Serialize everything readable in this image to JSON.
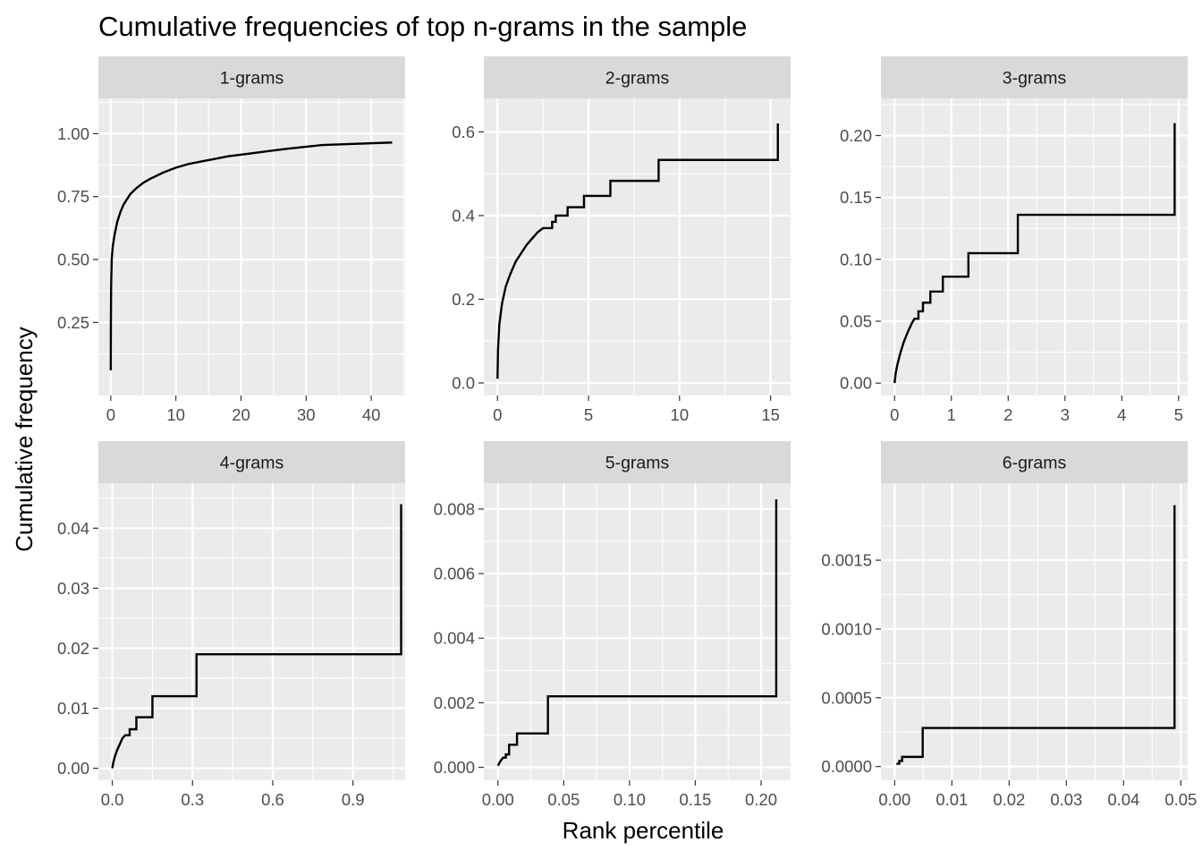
{
  "chart_data": {
    "type": "line",
    "title": "Cumulative frequencies of top n-grams in the sample",
    "xlabel": "Rank percentile",
    "ylabel": "Cumulative frequency",
    "grid": true,
    "panels": [
      {
        "label": "1-grams",
        "xlim": [
          -1.9,
          45.2
        ],
        "ylim": [
          -0.04,
          1.14
        ],
        "x_ticks": [
          0,
          10,
          20,
          30,
          40
        ],
        "x_tick_labels": [
          "0",
          "10",
          "20",
          "30",
          "40"
        ],
        "y_ticks": [
          0.25,
          0.5,
          0.75,
          1.0
        ],
        "y_tick_labels": [
          "0.25",
          "0.50",
          "0.75",
          "1.00"
        ],
        "curve": "smooth",
        "points": [
          [
            0,
            0.06
          ],
          [
            0.02,
            0.25
          ],
          [
            0.06,
            0.4
          ],
          [
            0.15,
            0.5
          ],
          [
            0.3,
            0.55
          ],
          [
            0.6,
            0.6
          ],
          [
            1,
            0.65
          ],
          [
            1.5,
            0.69
          ],
          [
            2,
            0.72
          ],
          [
            3,
            0.76
          ],
          [
            4,
            0.785
          ],
          [
            5,
            0.805
          ],
          [
            6,
            0.82
          ],
          [
            8,
            0.845
          ],
          [
            10,
            0.865
          ],
          [
            12,
            0.88
          ],
          [
            14,
            0.89
          ],
          [
            16,
            0.9
          ],
          [
            18,
            0.91
          ],
          [
            21,
            0.92
          ],
          [
            24,
            0.93
          ],
          [
            27,
            0.94
          ],
          [
            32.5,
            0.955
          ],
          [
            43.2,
            0.965
          ]
        ]
      },
      {
        "label": "2-grams",
        "xlim": [
          -0.75,
          16.1
        ],
        "ylim": [
          -0.03,
          0.68
        ],
        "x_ticks": [
          0,
          5,
          10,
          15
        ],
        "x_tick_labels": [
          "0",
          "5",
          "10",
          "15"
        ],
        "y_ticks": [
          0.0,
          0.2,
          0.4,
          0.6
        ],
        "y_tick_labels": [
          "0.0",
          "0.2",
          "0.4",
          "0.6"
        ],
        "curve": "smooth-then-steps",
        "points": [
          [
            0,
            0.01
          ],
          [
            0.03,
            0.08
          ],
          [
            0.1,
            0.14
          ],
          [
            0.25,
            0.19
          ],
          [
            0.45,
            0.23
          ],
          [
            0.7,
            0.26
          ],
          [
            1.0,
            0.29
          ],
          [
            1.3,
            0.31
          ],
          [
            1.6,
            0.33
          ],
          [
            2.0,
            0.35
          ],
          [
            2.2,
            0.36
          ],
          [
            2.5,
            0.37
          ]
        ],
        "steps": [
          [
            2.5,
            0.37
          ],
          [
            3.0,
            0.385
          ],
          [
            3.2,
            0.4
          ],
          [
            3.85,
            0.42
          ],
          [
            4.75,
            0.447
          ],
          [
            6.2,
            0.483
          ],
          [
            8.85,
            0.533
          ],
          [
            15.4,
            0.62
          ]
        ]
      },
      {
        "label": "3-grams",
        "xlim": [
          -0.24,
          5.16
        ],
        "ylim": [
          -0.01,
          0.23
        ],
        "x_ticks": [
          0,
          1,
          2,
          3,
          4,
          5
        ],
        "x_tick_labels": [
          "0",
          "1",
          "2",
          "3",
          "4",
          "5"
        ],
        "y_ticks": [
          0.0,
          0.05,
          0.1,
          0.15,
          0.2
        ],
        "y_tick_labels": [
          "0.00",
          "0.05",
          "0.10",
          "0.15",
          "0.20"
        ],
        "curve": "smooth-then-steps",
        "points": [
          [
            0,
            0.0
          ],
          [
            0.02,
            0.008
          ],
          [
            0.05,
            0.015
          ],
          [
            0.1,
            0.024
          ],
          [
            0.16,
            0.033
          ],
          [
            0.23,
            0.041
          ],
          [
            0.3,
            0.048
          ],
          [
            0.35,
            0.052
          ]
        ],
        "steps": [
          [
            0.35,
            0.052
          ],
          [
            0.42,
            0.058
          ],
          [
            0.5,
            0.065
          ],
          [
            0.63,
            0.074
          ],
          [
            0.85,
            0.086
          ],
          [
            1.3,
            0.105
          ],
          [
            2.17,
            0.136
          ],
          [
            4.93,
            0.21
          ]
        ]
      },
      {
        "label": "4-grams",
        "xlim": [
          -0.052,
          1.095
        ],
        "ylim": [
          -0.002,
          0.0475
        ],
        "x_ticks": [
          0.0,
          0.3,
          0.6,
          0.9
        ],
        "x_tick_labels": [
          "0.0",
          "0.3",
          "0.6",
          "0.9"
        ],
        "y_ticks": [
          0.0,
          0.01,
          0.02,
          0.03,
          0.04
        ],
        "y_tick_labels": [
          "0.00",
          "0.01",
          "0.02",
          "0.03",
          "0.04"
        ],
        "curve": "smooth-then-steps",
        "points": [
          [
            0,
            0.0
          ],
          [
            0.004,
            0.001
          ],
          [
            0.01,
            0.002
          ],
          [
            0.018,
            0.003
          ],
          [
            0.028,
            0.004
          ],
          [
            0.038,
            0.005
          ],
          [
            0.048,
            0.0055
          ]
        ],
        "steps": [
          [
            0.048,
            0.0055
          ],
          [
            0.065,
            0.0065
          ],
          [
            0.09,
            0.0085
          ],
          [
            0.15,
            0.012
          ],
          [
            0.315,
            0.019
          ],
          [
            1.08,
            0.044
          ]
        ]
      },
      {
        "label": "5-grams",
        "xlim": [
          -0.0107,
          0.2224
        ],
        "ylim": [
          -0.0004,
          0.0088
        ],
        "x_ticks": [
          0.0,
          0.05,
          0.1,
          0.15,
          0.2
        ],
        "x_tick_labels": [
          "0.00",
          "0.05",
          "0.10",
          "0.15",
          "0.20"
        ],
        "y_ticks": [
          0.0,
          0.002,
          0.004,
          0.006,
          0.008
        ],
        "y_tick_labels": [
          "0.000",
          "0.002",
          "0.004",
          "0.006",
          "0.008"
        ],
        "curve": "smooth-then-steps",
        "points": [
          [
            0,
            5e-05
          ],
          [
            0.002,
            0.0002
          ],
          [
            0.004,
            0.0003
          ]
        ],
        "steps": [
          [
            0.004,
            0.0003
          ],
          [
            0.006,
            0.0004
          ],
          [
            0.0085,
            0.0007
          ],
          [
            0.0145,
            0.00105
          ],
          [
            0.038,
            0.0022
          ],
          [
            0.2115,
            0.0083
          ]
        ]
      },
      {
        "label": "6-grams",
        "xlim": [
          -0.0024,
          0.0512
        ],
        "ylim": [
          -0.0001,
          0.00206
        ],
        "x_ticks": [
          0.0,
          0.01,
          0.02,
          0.03,
          0.04,
          0.05
        ],
        "x_tick_labels": [
          "0.00",
          "0.01",
          "0.02",
          "0.03",
          "0.04",
          "0.05"
        ],
        "y_ticks": [
          0.0,
          0.0005,
          0.001,
          0.0015
        ],
        "y_tick_labels": [
          "0.0000",
          "0.0005",
          "0.0010",
          "0.0015"
        ],
        "curve": "steps",
        "points": [
          [
            0.0003,
            2e-05
          ]
        ],
        "steps": [
          [
            0.0003,
            2e-05
          ],
          [
            0.0008,
            4e-05
          ],
          [
            0.0013,
            7e-05
          ],
          [
            0.0049,
            0.00028
          ],
          [
            0.0489,
            0.0019
          ]
        ]
      }
    ]
  }
}
